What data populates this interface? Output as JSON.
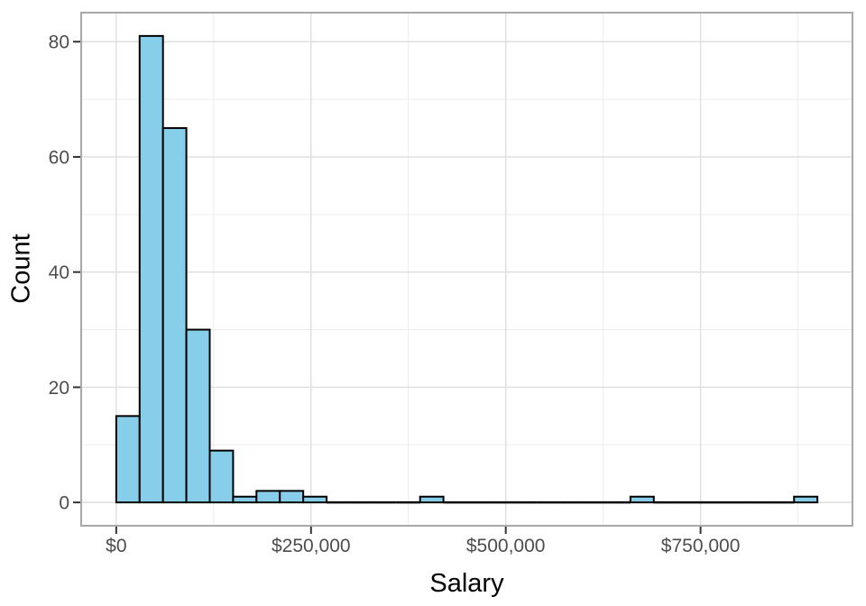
{
  "chart_data": {
    "type": "bar",
    "subtype": "histogram",
    "title": "",
    "xlabel": "Salary",
    "ylabel": "Count",
    "bin_width": 30000,
    "bins": [
      {
        "start": 0,
        "end": 30000,
        "count": 15
      },
      {
        "start": 30000,
        "end": 60000,
        "count": 81
      },
      {
        "start": 60000,
        "end": 90000,
        "count": 65
      },
      {
        "start": 90000,
        "end": 120000,
        "count": 30
      },
      {
        "start": 120000,
        "end": 150000,
        "count": 9
      },
      {
        "start": 150000,
        "end": 180000,
        "count": 1
      },
      {
        "start": 180000,
        "end": 210000,
        "count": 2
      },
      {
        "start": 210000,
        "end": 240000,
        "count": 2
      },
      {
        "start": 240000,
        "end": 270000,
        "count": 1
      },
      {
        "start": 270000,
        "end": 300000,
        "count": 0
      },
      {
        "start": 300000,
        "end": 330000,
        "count": 0
      },
      {
        "start": 330000,
        "end": 360000,
        "count": 0
      },
      {
        "start": 360000,
        "end": 390000,
        "count": 0
      },
      {
        "start": 390000,
        "end": 420000,
        "count": 1
      },
      {
        "start": 420000,
        "end": 450000,
        "count": 0
      },
      {
        "start": 450000,
        "end": 480000,
        "count": 0
      },
      {
        "start": 480000,
        "end": 510000,
        "count": 0
      },
      {
        "start": 510000,
        "end": 540000,
        "count": 0
      },
      {
        "start": 540000,
        "end": 570000,
        "count": 0
      },
      {
        "start": 570000,
        "end": 600000,
        "count": 0
      },
      {
        "start": 600000,
        "end": 630000,
        "count": 0
      },
      {
        "start": 630000,
        "end": 660000,
        "count": 0
      },
      {
        "start": 660000,
        "end": 690000,
        "count": 1
      },
      {
        "start": 690000,
        "end": 720000,
        "count": 0
      },
      {
        "start": 720000,
        "end": 750000,
        "count": 0
      },
      {
        "start": 750000,
        "end": 780000,
        "count": 0
      },
      {
        "start": 780000,
        "end": 810000,
        "count": 0
      },
      {
        "start": 810000,
        "end": 840000,
        "count": 0
      },
      {
        "start": 840000,
        "end": 870000,
        "count": 0
      },
      {
        "start": 870000,
        "end": 900000,
        "count": 1
      }
    ],
    "x_ticks": [
      {
        "value": 0,
        "label": "$0"
      },
      {
        "value": 250000,
        "label": "$250,000"
      },
      {
        "value": 500000,
        "label": "$500,000"
      },
      {
        "value": 750000,
        "label": "$750,000"
      }
    ],
    "y_ticks": [
      {
        "value": 0,
        "label": "0"
      },
      {
        "value": 20,
        "label": "20"
      },
      {
        "value": 40,
        "label": "40"
      },
      {
        "value": 60,
        "label": "60"
      },
      {
        "value": 80,
        "label": "80"
      }
    ],
    "x_minor_ticks": [
      125000,
      375000,
      625000,
      875000
    ],
    "y_minor_ticks": [
      10,
      30,
      50,
      70
    ],
    "xlim": [
      -45000,
      945000
    ],
    "ylim": [
      -4.05,
      85.05
    ],
    "grid": true,
    "legend_position": "none",
    "colors": {
      "bar_fill": "#87CEEB",
      "bar_stroke": "#000000",
      "grid_major": "#DEDEDE",
      "grid_minor": "#EDEDED",
      "panel_border": "#A8A8A8",
      "panel_bg": "#FFFFFF",
      "tick_mark": "#333333",
      "tick_label": "#4D4D4D",
      "axis_title": "#000000"
    }
  }
}
